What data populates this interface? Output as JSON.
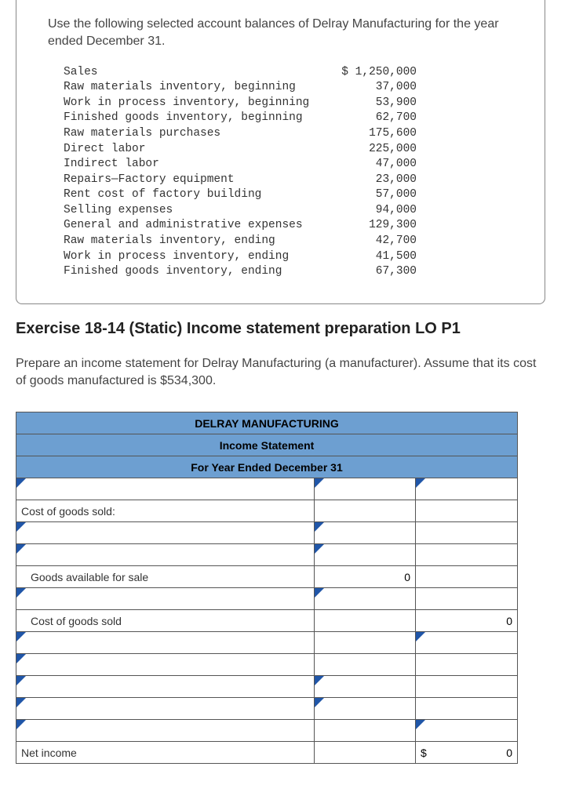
{
  "problem": {
    "intro": "Use the following selected account balances of Delray Manufacturing for the year ended December 31.",
    "accounts": [
      {
        "label": "Sales",
        "value": "$ 1,250,000"
      },
      {
        "label": "Raw materials inventory, beginning",
        "value": "37,000"
      },
      {
        "label": "Work in process inventory, beginning",
        "value": "53,900"
      },
      {
        "label": "Finished goods inventory, beginning",
        "value": "62,700"
      },
      {
        "label": "Raw materials purchases",
        "value": "175,600"
      },
      {
        "label": "Direct labor",
        "value": "225,000"
      },
      {
        "label": "Indirect labor",
        "value": "47,000"
      },
      {
        "label": "Repairs—Factory equipment",
        "value": "23,000"
      },
      {
        "label": "Rent cost of factory building",
        "value": "57,000"
      },
      {
        "label": "Selling expenses",
        "value": "94,000"
      },
      {
        "label": "General and administrative expenses",
        "value": "129,300"
      },
      {
        "label": "Raw materials inventory, ending",
        "value": "42,700"
      },
      {
        "label": "Work in process inventory, ending",
        "value": "41,500"
      },
      {
        "label": "Finished goods inventory, ending",
        "value": "67,300"
      }
    ]
  },
  "exercise": {
    "title": "Exercise 18-14 (Static) Income statement preparation LO P1",
    "instruction": "Prepare an income statement for Delray Manufacturing (a manufacturer). Assume that its cost of goods manufactured is $534,300."
  },
  "worksheet": {
    "header1": "DELRAY MANUFACTURING",
    "header2": "Income Statement",
    "header3": "For Year Ended December 31",
    "header_bg": "#6d9fd1",
    "dropdown_indicator_color": "#2056a8",
    "rows": {
      "cogs_label": "Cost of goods sold:",
      "goods_avail_label": "Goods available for sale",
      "goods_avail_value": "0",
      "cogs_total_label": "Cost of goods sold",
      "cogs_total_value": "0",
      "net_income_label": "Net income",
      "net_income_currency": "$",
      "net_income_value": "0"
    }
  }
}
